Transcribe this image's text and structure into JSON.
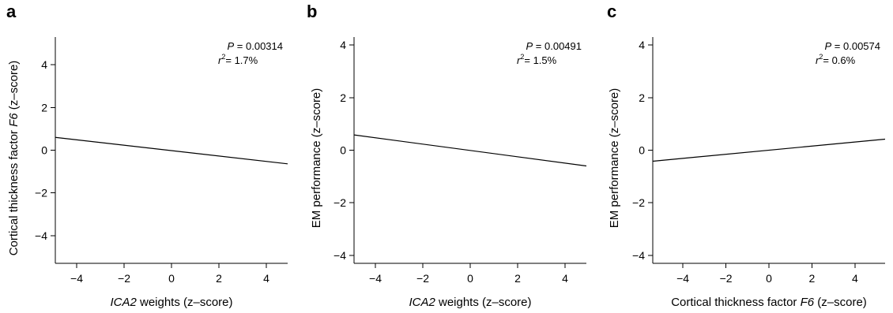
{
  "chart_data": [
    {
      "panel": "a",
      "type": "line",
      "xlabel_parts": [
        {
          "text": "ICA2",
          "italic": true
        },
        {
          "text": " weights (z–score)",
          "italic": false
        }
      ],
      "ylabel_parts": [
        {
          "text": "Cortical thickness factor ",
          "italic": false
        },
        {
          "text": "F6",
          "italic": true
        },
        {
          "text": " (z–score)",
          "italic": false
        }
      ],
      "xlim": [
        -4.9,
        4.9
      ],
      "ylim": [
        -5.3,
        5.3
      ],
      "xticks": [
        -4,
        -2,
        0,
        2,
        4
      ],
      "yticks": [
        -4,
        -2,
        0,
        2,
        4
      ],
      "tick_labels_x": [
        "−4",
        "−2",
        "0",
        "2",
        "4"
      ],
      "tick_labels_y": [
        "−4",
        "−2",
        "0",
        "2",
        "4"
      ],
      "series": [
        {
          "x": [
            -4.9,
            4.9
          ],
          "y": [
            0.6,
            -0.64
          ]
        }
      ],
      "annotation": {
        "p_symbol": "P",
        "p_value": " = 0.00314",
        "r_symbol": "r",
        "r_exp": "2",
        "r_value": "= 1.7%"
      }
    },
    {
      "panel": "b",
      "type": "line",
      "xlabel_parts": [
        {
          "text": "ICA2",
          "italic": true
        },
        {
          "text": " weights (z–score)",
          "italic": false
        }
      ],
      "ylabel_parts": [
        {
          "text": "EM performance (z–score)",
          "italic": false
        }
      ],
      "xlim": [
        -4.9,
        4.9
      ],
      "ylim": [
        -4.3,
        4.3
      ],
      "xticks": [
        -4,
        -2,
        0,
        2,
        4
      ],
      "yticks": [
        -4,
        -2,
        0,
        2,
        4
      ],
      "tick_labels_x": [
        "−4",
        "−2",
        "0",
        "2",
        "4"
      ],
      "tick_labels_y": [
        "−4",
        "−2",
        "0",
        "2",
        "4"
      ],
      "series": [
        {
          "x": [
            -4.9,
            4.9
          ],
          "y": [
            0.58,
            -0.6
          ]
        }
      ],
      "annotation": {
        "p_symbol": "P",
        "p_value": " = 0.00491",
        "r_symbol": "r",
        "r_exp": "2",
        "r_value": "= 1.5%"
      }
    },
    {
      "panel": "c",
      "type": "line",
      "xlabel_parts": [
        {
          "text": "Cortical thickness factor ",
          "italic": false
        },
        {
          "text": "F6",
          "italic": true
        },
        {
          "text": " (z–score)",
          "italic": false
        }
      ],
      "ylabel_parts": [
        {
          "text": "EM performance (z–score)",
          "italic": false
        }
      ],
      "xlim": [
        -5.4,
        5.4
      ],
      "ylim": [
        -4.3,
        4.3
      ],
      "xticks": [
        -4,
        -2,
        0,
        2,
        4
      ],
      "yticks": [
        -4,
        -2,
        0,
        2,
        4
      ],
      "tick_labels_x": [
        "−4",
        "−2",
        "0",
        "2",
        "4"
      ],
      "tick_labels_y": [
        "−4",
        "−2",
        "0",
        "2",
        "4"
      ],
      "series": [
        {
          "x": [
            -5.4,
            5.4
          ],
          "y": [
            -0.42,
            0.42
          ]
        }
      ],
      "annotation": {
        "p_symbol": "P",
        "p_value": " = 0.00574",
        "r_symbol": "r",
        "r_exp": "2",
        "r_value": "= 0.6%"
      }
    }
  ]
}
